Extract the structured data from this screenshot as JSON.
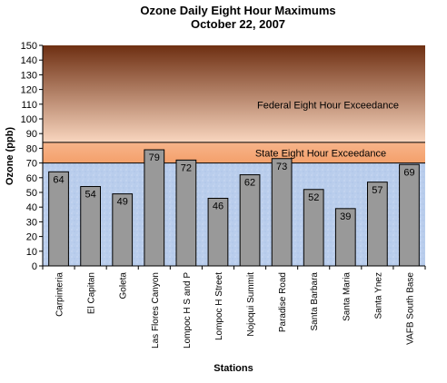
{
  "chart_data": {
    "type": "bar",
    "title": "Ozone Daily Eight Hour Maximums",
    "subtitle": "October 22, 2007",
    "xlabel": "Stations",
    "ylabel": "Ozone (ppb)",
    "ylim": [
      0,
      150
    ],
    "yticks": [
      0,
      10,
      20,
      30,
      40,
      50,
      60,
      70,
      80,
      90,
      100,
      110,
      120,
      130,
      140,
      150
    ],
    "categories": [
      "Carpinteria",
      "El Capitan",
      "Goleta",
      "Las Flores Canyon",
      "Lompoc H S and P",
      "Lompoc H Street",
      "Nojoqui Summit",
      "Paradise Road",
      "Santa Barbara",
      "Santa Maria",
      "Santa Ynez",
      "VAFB South Base"
    ],
    "values": [
      64,
      54,
      49,
      79,
      72,
      46,
      62,
      73,
      52,
      39,
      57,
      69
    ],
    "thresholds": [
      {
        "label": "State Eight Hour Exceedance",
        "value": 70
      },
      {
        "label": "Federal Eight Hour Exceedance",
        "value": 84
      }
    ],
    "legend": "none",
    "grid": false,
    "colors": {
      "bar_fill": "#999999",
      "bar_stroke": "#000000",
      "below_band": "#b9cdec",
      "state_band": "#f4a06b",
      "federal_band_top": "#6e2f12",
      "federal_band_bottom": "#f9d6bf"
    }
  }
}
